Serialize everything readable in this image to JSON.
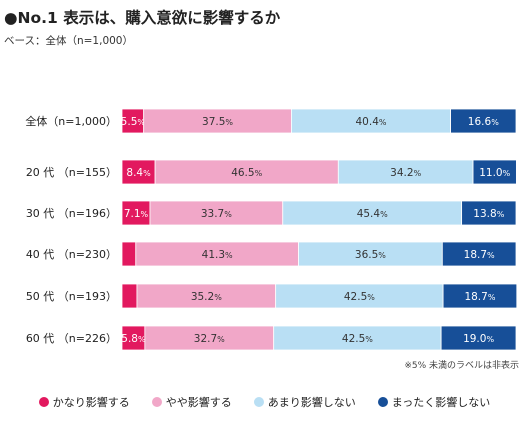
{
  "title": "●No.1 表示は、購入意欲に影響するか",
  "subtitle": "ベース：全体（n=1,000）",
  "note": "※5% 未満のラベルは非表示",
  "chart_data": {
    "type": "bar",
    "orientation": "horizontal",
    "stacked": "100%",
    "unit": "%",
    "xlim": [
      0,
      100
    ],
    "grid": false,
    "legend_position": "bottom",
    "label_threshold": 5,
    "categories": [
      "全体（n=1,000）",
      "20 代 （n=155）",
      "30 代 （n=196）",
      "40 代 （n=230）",
      "50 代 （n=193）",
      "60 代 （n=226）"
    ],
    "series": [
      {
        "name": "かなり影響する",
        "color": "#e2195f",
        "label_color": "#ffffff",
        "values": [
          5.5,
          8.4,
          7.1,
          3.5,
          3.8,
          5.8
        ]
      },
      {
        "name": "やや影響する",
        "color": "#f1a7c8",
        "label_color": "#333333",
        "values": [
          37.5,
          46.5,
          33.7,
          41.3,
          35.2,
          32.7
        ]
      },
      {
        "name": "あまり影響しない",
        "color": "#b9dff4",
        "label_color": "#333333",
        "values": [
          40.4,
          34.2,
          45.4,
          36.5,
          42.5,
          42.5
        ]
      },
      {
        "name": "まったく影響しない",
        "color": "#174f98",
        "label_color": "#ffffff",
        "values": [
          16.6,
          11.0,
          13.8,
          18.7,
          18.7,
          19.0
        ]
      }
    ]
  }
}
